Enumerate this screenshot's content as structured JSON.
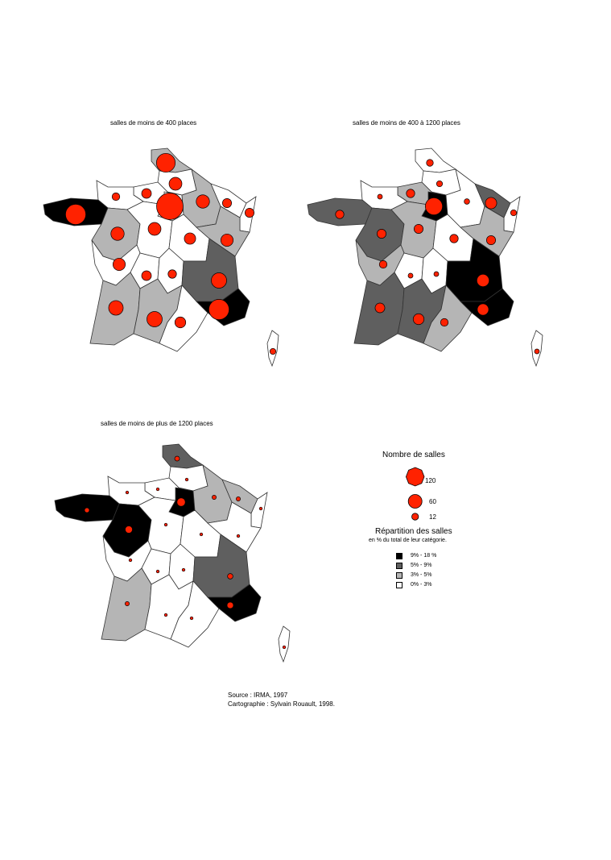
{
  "palette": {
    "class_1": "#000000",
    "class_2": "#5f5f5f",
    "class_3": "#b5b5b5",
    "class_4": "#ffffff",
    "symbol": "#ff2200"
  },
  "maps": [
    {
      "title": "salles de moins de 400 places",
      "regions": {
        "nord": 3,
        "picardie": 4,
        "hnormandie": 4,
        "bnormandie": 4,
        "idf": 4,
        "champagne": 3,
        "lorraine": 4,
        "alsace": 4,
        "bretagne": 1,
        "pdl": 3,
        "centre": 4,
        "bourgogne": 4,
        "franche": 3,
        "poitou": 4,
        "limousin": 4,
        "auvergne": 4,
        "rhone": 2,
        "aquitaine": 3,
        "midi": 3,
        "languedoc": 4,
        "paca": 1,
        "corse": 4
      },
      "symbols": {
        "nord": 60,
        "picardie": 28,
        "hnormandie": 16,
        "bnormandie": 10,
        "idf": 120,
        "champagne": 30,
        "lorraine": 14,
        "alsace": 14,
        "bretagne": 70,
        "pdl": 30,
        "centre": 28,
        "bourgogne": 22,
        "franche": 26,
        "poitou": 26,
        "limousin": 16,
        "auvergne": 12,
        "rhone": 40,
        "aquitaine": 36,
        "midi": 40,
        "languedoc": 20,
        "paca": 70,
        "corse": 6
      }
    },
    {
      "title": "salles de moins de 400 à 1200 places",
      "regions": {
        "nord": 4,
        "picardie": 4,
        "hnormandie": 3,
        "bnormandie": 4,
        "idf": 1,
        "champagne": 4,
        "lorraine": 2,
        "alsace": 4,
        "bretagne": 2,
        "pdl": 2,
        "centre": 3,
        "bourgogne": 4,
        "franche": 3,
        "poitou": 3,
        "limousin": 4,
        "auvergne": 4,
        "rhone": 1,
        "aquitaine": 2,
        "midi": 2,
        "languedoc": 3,
        "paca": 1,
        "corse": 4
      },
      "symbols": {
        "nord": 8,
        "picardie": 6,
        "hnormandie": 12,
        "bnormandie": 4,
        "idf": 50,
        "champagne": 5,
        "lorraine": 22,
        "alsace": 6,
        "bretagne": 12,
        "pdl": 14,
        "centre": 14,
        "bourgogne": 12,
        "franche": 14,
        "poitou": 10,
        "limousin": 4,
        "auvergne": 4,
        "rhone": 26,
        "aquitaine": 16,
        "midi": 20,
        "languedoc": 10,
        "paca": 22,
        "corse": 4
      }
    },
    {
      "title": "salles de moins de plus de 1200 places",
      "regions": {
        "nord": 2,
        "picardie": 4,
        "hnormandie": 4,
        "bnormandie": 4,
        "idf": 1,
        "champagne": 3,
        "lorraine": 3,
        "alsace": 4,
        "bretagne": 1,
        "pdl": 1,
        "centre": 4,
        "bourgogne": 4,
        "franche": 4,
        "poitou": 4,
        "limousin": 4,
        "auvergne": 4,
        "rhone": 2,
        "aquitaine": 3,
        "midi": 4,
        "languedoc": 4,
        "paca": 1,
        "corse": 4
      },
      "symbols": {
        "nord": 4,
        "picardie": 1,
        "hnormandie": 1,
        "bnormandie": 1,
        "idf": 12,
        "champagne": 3,
        "lorraine": 3,
        "alsace": 1,
        "bretagne": 4,
        "pdl": 9,
        "centre": 1,
        "bourgogne": 1,
        "franche": 1,
        "poitou": 1,
        "limousin": 1,
        "auvergne": 1,
        "rhone": 5,
        "aquitaine": 3,
        "midi": 1,
        "languedoc": 1,
        "paca": 7,
        "corse": 1
      }
    }
  ],
  "legend": {
    "size_title": "Nombre de salles",
    "size_values": [
      120,
      60,
      12
    ],
    "size_labels": [
      "120",
      "60",
      "12"
    ],
    "class_title": "Répartition des salles",
    "class_subtitle": "en % du total de leur catégorie.",
    "classes": [
      {
        "label": "9% -  18 %",
        "color": "#000000"
      },
      {
        "label": "5% -    9%",
        "color": "#5f5f5f"
      },
      {
        "label": "3% -    5%",
        "color": "#b5b5b5"
      },
      {
        "label": "0% -    3%",
        "color": "#ffffff"
      }
    ]
  },
  "source": {
    "line1": "Source : IRMA, 1997",
    "line2": "Cartographie : Sylvain Rouault, 1998."
  }
}
